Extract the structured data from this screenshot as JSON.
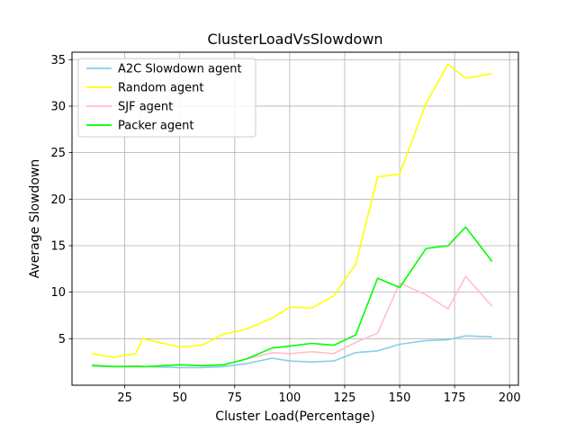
{
  "chart_data": {
    "type": "line",
    "title": "ClusterLoadVsSlowdown",
    "xlabel": "Cluster Load(Percentage)",
    "ylabel": "Average Slowdown",
    "xlim": [
      1,
      204
    ],
    "ylim": [
      0,
      35.8
    ],
    "xticks": [
      25,
      50,
      75,
      100,
      125,
      150,
      175,
      200
    ],
    "yticks": [
      5,
      10,
      15,
      20,
      25,
      30,
      35
    ],
    "xtick_labels": [
      "25",
      "50",
      "75",
      "100",
      "125",
      "150",
      "175",
      "200"
    ],
    "ytick_labels": [
      "5",
      "10",
      "15",
      "20",
      "25",
      "30",
      "35"
    ],
    "grid": true,
    "legend_position": "top-left",
    "series": [
      {
        "name": "A2C Slowdown agent",
        "color": "#87ceeb",
        "x": [
          10,
          20,
          30,
          35,
          50,
          60,
          70,
          80,
          92,
          100,
          110,
          120,
          130,
          140,
          150,
          162,
          172,
          180,
          192
        ],
        "y": [
          2.1,
          2.0,
          2.0,
          2.0,
          1.9,
          1.9,
          2.0,
          2.3,
          2.9,
          2.6,
          2.5,
          2.6,
          3.5,
          3.7,
          4.4,
          4.8,
          4.9,
          5.3,
          5.2
        ]
      },
      {
        "name": "Random agent",
        "color": "#ffff00",
        "x": [
          10,
          20,
          30,
          33,
          50,
          60,
          70,
          80,
          92,
          100,
          110,
          120,
          130,
          140,
          150,
          162,
          172,
          180,
          192
        ],
        "y": [
          3.4,
          3.0,
          3.4,
          5.0,
          4.1,
          4.3,
          5.5,
          6.0,
          7.2,
          8.4,
          8.3,
          9.6,
          13.0,
          22.4,
          22.7,
          30.3,
          34.5,
          33.0,
          33.5
        ]
      },
      {
        "name": "SJF agent",
        "color": "#ffc0cb",
        "x": [
          10,
          20,
          30,
          35,
          50,
          60,
          70,
          80,
          92,
          100,
          110,
          120,
          130,
          140,
          150,
          162,
          172,
          180,
          192
        ],
        "y": [
          2.2,
          2.0,
          2.1,
          2.0,
          2.2,
          2.1,
          2.2,
          2.8,
          3.5,
          3.4,
          3.6,
          3.4,
          4.6,
          5.6,
          11.0,
          9.7,
          8.2,
          11.7,
          8.5
        ]
      },
      {
        "name": "Packer agent",
        "color": "#00ff00",
        "x": [
          10,
          20,
          30,
          35,
          50,
          60,
          70,
          80,
          92,
          100,
          110,
          120,
          130,
          140,
          150,
          162,
          172,
          180,
          192
        ],
        "y": [
          2.1,
          2.0,
          2.0,
          2.0,
          2.2,
          2.1,
          2.2,
          2.8,
          4.0,
          4.2,
          4.5,
          4.3,
          5.4,
          11.5,
          10.5,
          14.7,
          15.0,
          17.0,
          13.3
        ]
      }
    ]
  }
}
